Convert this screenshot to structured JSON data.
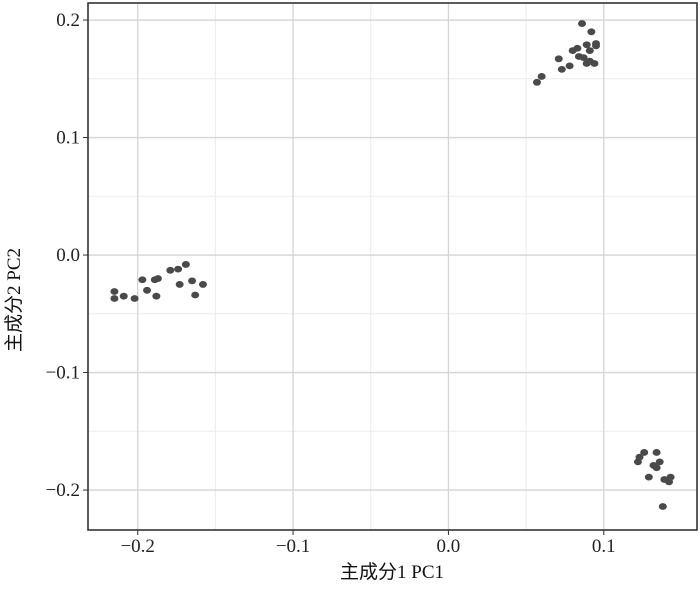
{
  "chart_data": {
    "type": "scatter",
    "x_label": "主成分1 PC1",
    "y_label": "主成分2 PC2",
    "xlim": [
      -0.232,
      0.16
    ],
    "ylim": [
      -0.234,
      0.2145
    ],
    "xticks": [
      {
        "value": -0.2,
        "label": "−0.2"
      },
      {
        "value": -0.1,
        "label": "−0.1"
      },
      {
        "value": 0.0,
        "label": "0.0"
      },
      0.1
    ],
    "yticks": [
      {
        "value": -0.2,
        "label": "−0.2"
      },
      {
        "value": -0.1,
        "label": "−0.1"
      },
      {
        "value": 0.0,
        "label": "0.0"
      },
      0.1,
      0.2
    ],
    "grid": true,
    "minor_grid": true,
    "color": "#4a4a4a",
    "x": [
      0.086,
      0.092,
      0.095,
      0.089,
      0.083,
      0.091,
      0.095,
      0.08,
      0.084,
      0.071,
      0.087,
      0.091,
      0.094,
      0.089,
      0.078,
      0.073,
      0.06,
      0.057,
      -0.215,
      -0.209,
      -0.215,
      -0.202,
      -0.197,
      -0.194,
      -0.189,
      -0.187,
      -0.188,
      -0.179,
      -0.174,
      -0.169,
      -0.173,
      -0.165,
      -0.163,
      -0.158,
      0.126,
      0.123,
      0.134,
      0.122,
      0.132,
      0.136,
      0.134,
      0.129,
      0.139,
      0.142,
      0.138,
      0.143
    ],
    "values": [
      0.197,
      0.19,
      0.18,
      0.179,
      0.176,
      0.174,
      0.178,
      0.174,
      0.169,
      0.167,
      0.168,
      0.165,
      0.163,
      0.163,
      0.161,
      0.158,
      0.152,
      0.147,
      -0.031,
      -0.035,
      -0.037,
      -0.037,
      -0.021,
      -0.03,
      -0.021,
      -0.02,
      -0.035,
      -0.013,
      -0.012,
      -0.008,
      -0.025,
      -0.022,
      -0.034,
      -0.025,
      -0.168,
      -0.172,
      -0.168,
      -0.176,
      -0.179,
      -0.176,
      -0.181,
      -0.189,
      -0.191,
      -0.193,
      -0.214,
      -0.189
    ]
  }
}
